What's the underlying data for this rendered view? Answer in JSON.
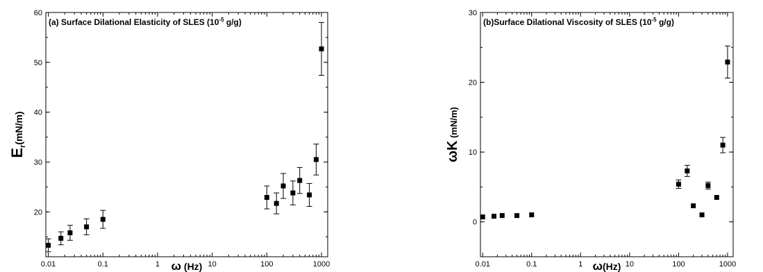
{
  "chart_data": [
    {
      "type": "scatter",
      "title_prefix": "(a) Surface Dilational Elasticity of SLES (10",
      "title_sup": "-5",
      "title_suffix": " g/g)",
      "xlabel_sym": "ω",
      "xlabel_rest": " (Hz)",
      "ylabel_main": "E",
      "ylabel_sub": "r",
      "ylabel_rest": "(mN/m)",
      "x_scale": "log",
      "xlim": [
        0.009,
        1300
      ],
      "ylim": [
        11,
        60
      ],
      "x_ticks": [
        0.01,
        0.1,
        1,
        10,
        100,
        1000
      ],
      "x_tick_labels": [
        "0.01",
        "0.1",
        "1",
        "10",
        "100",
        "1000"
      ],
      "y_ticks": [
        20,
        30,
        40,
        50,
        60
      ],
      "y_tick_labels": [
        "20",
        "30",
        "40",
        "50",
        "60"
      ],
      "grid": false,
      "points": [
        {
          "x": 0.01,
          "y": 13.3,
          "err": 1.3
        },
        {
          "x": 0.017,
          "y": 14.7,
          "err": 1.3
        },
        {
          "x": 0.025,
          "y": 15.8,
          "err": 1.5
        },
        {
          "x": 0.05,
          "y": 17.0,
          "err": 1.6
        },
        {
          "x": 0.1,
          "y": 18.5,
          "err": 1.8
        },
        {
          "x": 100,
          "y": 22.9,
          "err": 2.3
        },
        {
          "x": 150,
          "y": 21.7,
          "err": 2.1
        },
        {
          "x": 200,
          "y": 25.2,
          "err": 2.5
        },
        {
          "x": 300,
          "y": 23.8,
          "err": 2.4
        },
        {
          "x": 400,
          "y": 26.3,
          "err": 2.6
        },
        {
          "x": 600,
          "y": 23.4,
          "err": 2.3
        },
        {
          "x": 800,
          "y": 30.5,
          "err": 3.1
        },
        {
          "x": 1000,
          "y": 52.7,
          "err": 5.3
        }
      ]
    },
    {
      "type": "scatter",
      "title_prefix": "(b)Surface Dilational Viscosity of SLES (10",
      "title_sup": "-5",
      "title_suffix": " g/g)",
      "xlabel_sym": "ω",
      "xlabel_rest": "(Hz)",
      "ylabel_main": "ωK",
      "ylabel_sub": "",
      "ylabel_rest": " (mN/m)",
      "x_scale": "log",
      "xlim": [
        0.009,
        1300
      ],
      "ylim": [
        -5,
        30
      ],
      "x_ticks": [
        0.01,
        0.1,
        1,
        10,
        100,
        1000
      ],
      "x_tick_labels": [
        "0.01",
        "0.1",
        "1",
        "10",
        "100",
        "1000"
      ],
      "y_ticks": [
        0,
        10,
        20,
        30
      ],
      "y_tick_labels": [
        "0",
        "10",
        "20",
        "30"
      ],
      "grid": false,
      "points": [
        {
          "x": 0.01,
          "y": 0.7,
          "err": 0
        },
        {
          "x": 0.017,
          "y": 0.8,
          "err": 0
        },
        {
          "x": 0.025,
          "y": 0.9,
          "err": 0
        },
        {
          "x": 0.05,
          "y": 0.9,
          "err": 0
        },
        {
          "x": 0.1,
          "y": 1.0,
          "err": 0
        },
        {
          "x": 100,
          "y": 5.4,
          "err": 0.6
        },
        {
          "x": 150,
          "y": 7.3,
          "err": 0.8
        },
        {
          "x": 200,
          "y": 2.3,
          "err": 0
        },
        {
          "x": 300,
          "y": 1.0,
          "err": 0
        },
        {
          "x": 400,
          "y": 5.2,
          "err": 0.5
        },
        {
          "x": 600,
          "y": 3.5,
          "err": 0
        },
        {
          "x": 800,
          "y": 11.0,
          "err": 1.1
        },
        {
          "x": 1000,
          "y": 22.9,
          "err": 2.3
        }
      ]
    }
  ]
}
